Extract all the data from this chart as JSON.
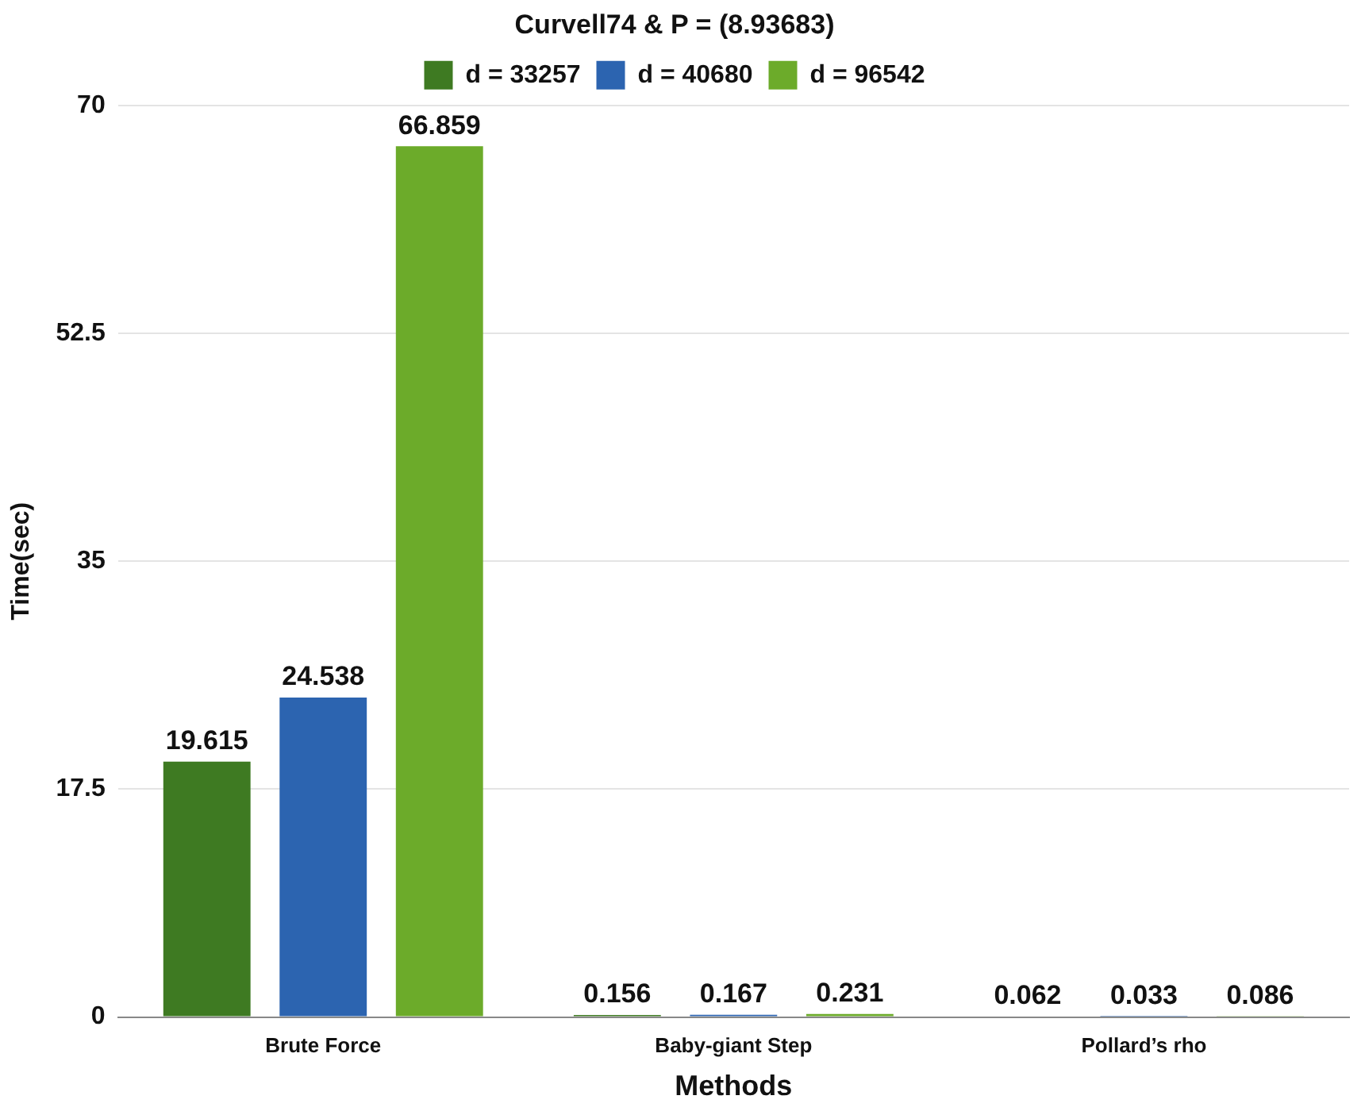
{
  "chart_data": {
    "type": "bar",
    "title": "Curvell74 & P = (8.93683)",
    "xlabel": "Methods",
    "ylabel": "Time(sec)",
    "categories": [
      "Brute Force",
      "Baby-giant Step",
      "Pollard’s rho"
    ],
    "series": [
      {
        "name": "d = 33257",
        "color": "#3e7a22",
        "values": [
          19.615,
          0.156,
          0.062
        ]
      },
      {
        "name": "d = 40680",
        "color": "#2c64b0",
        "values": [
          24.538,
          0.167,
          0.033
        ]
      },
      {
        "name": "d = 96542",
        "color": "#6cab2a",
        "values": [
          66.859,
          0.231,
          0.086
        ]
      }
    ],
    "ylim": [
      0,
      70
    ],
    "yticks": [
      0,
      17.5,
      35,
      52.5,
      70
    ],
    "grid": "y",
    "legend": "top",
    "data_labels": true
  }
}
